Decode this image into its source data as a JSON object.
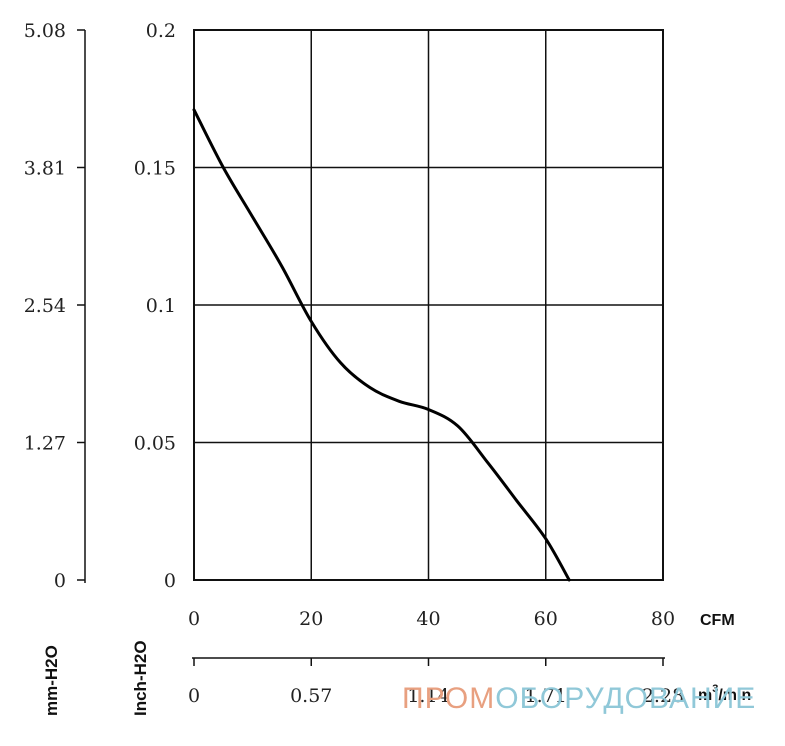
{
  "chart_data": {
    "type": "line",
    "x_axis_top": {
      "unit": "CFM",
      "ticks": [
        "0",
        "20",
        "40",
        "60",
        "80"
      ],
      "range": [
        0,
        80
      ]
    },
    "x_axis_bottom": {
      "unit_prefix": "m",
      "unit_sup": "3",
      "unit_suffix": "/min",
      "ticks": [
        "0",
        "0.57",
        "1.14",
        "1.71",
        "2.28"
      ],
      "range": [
        0,
        2.28
      ]
    },
    "y_axis_inner": {
      "label": "Inch-H2O",
      "ticks": [
        "0",
        "0.05",
        "0.1",
        "0.15",
        "0.2"
      ],
      "range": [
        0,
        0.2
      ]
    },
    "y_axis_outer": {
      "label": "mm-H2O",
      "ticks": [
        "0",
        "1.27",
        "2.54",
        "3.81",
        "5.08"
      ],
      "range": [
        0,
        5.08
      ]
    },
    "grid": true,
    "series": [
      {
        "points": [
          [
            0,
            0.171
          ],
          [
            5,
            0.15
          ],
          [
            10,
            0.132
          ],
          [
            15,
            0.114
          ],
          [
            20,
            0.094
          ],
          [
            25,
            0.079
          ],
          [
            30,
            0.07
          ],
          [
            35,
            0.065
          ],
          [
            40,
            0.062
          ],
          [
            45,
            0.056
          ],
          [
            50,
            0.043
          ],
          [
            55,
            0.029
          ],
          [
            60,
            0.015
          ],
          [
            64,
            0.0
          ]
        ],
        "color": "#000000"
      }
    ]
  },
  "watermark": {
    "part1": "ПРОМ",
    "part2": "ОБОРУДОВАНИЕ",
    "color1": "#e8a080",
    "color2": "#90c8d8"
  }
}
